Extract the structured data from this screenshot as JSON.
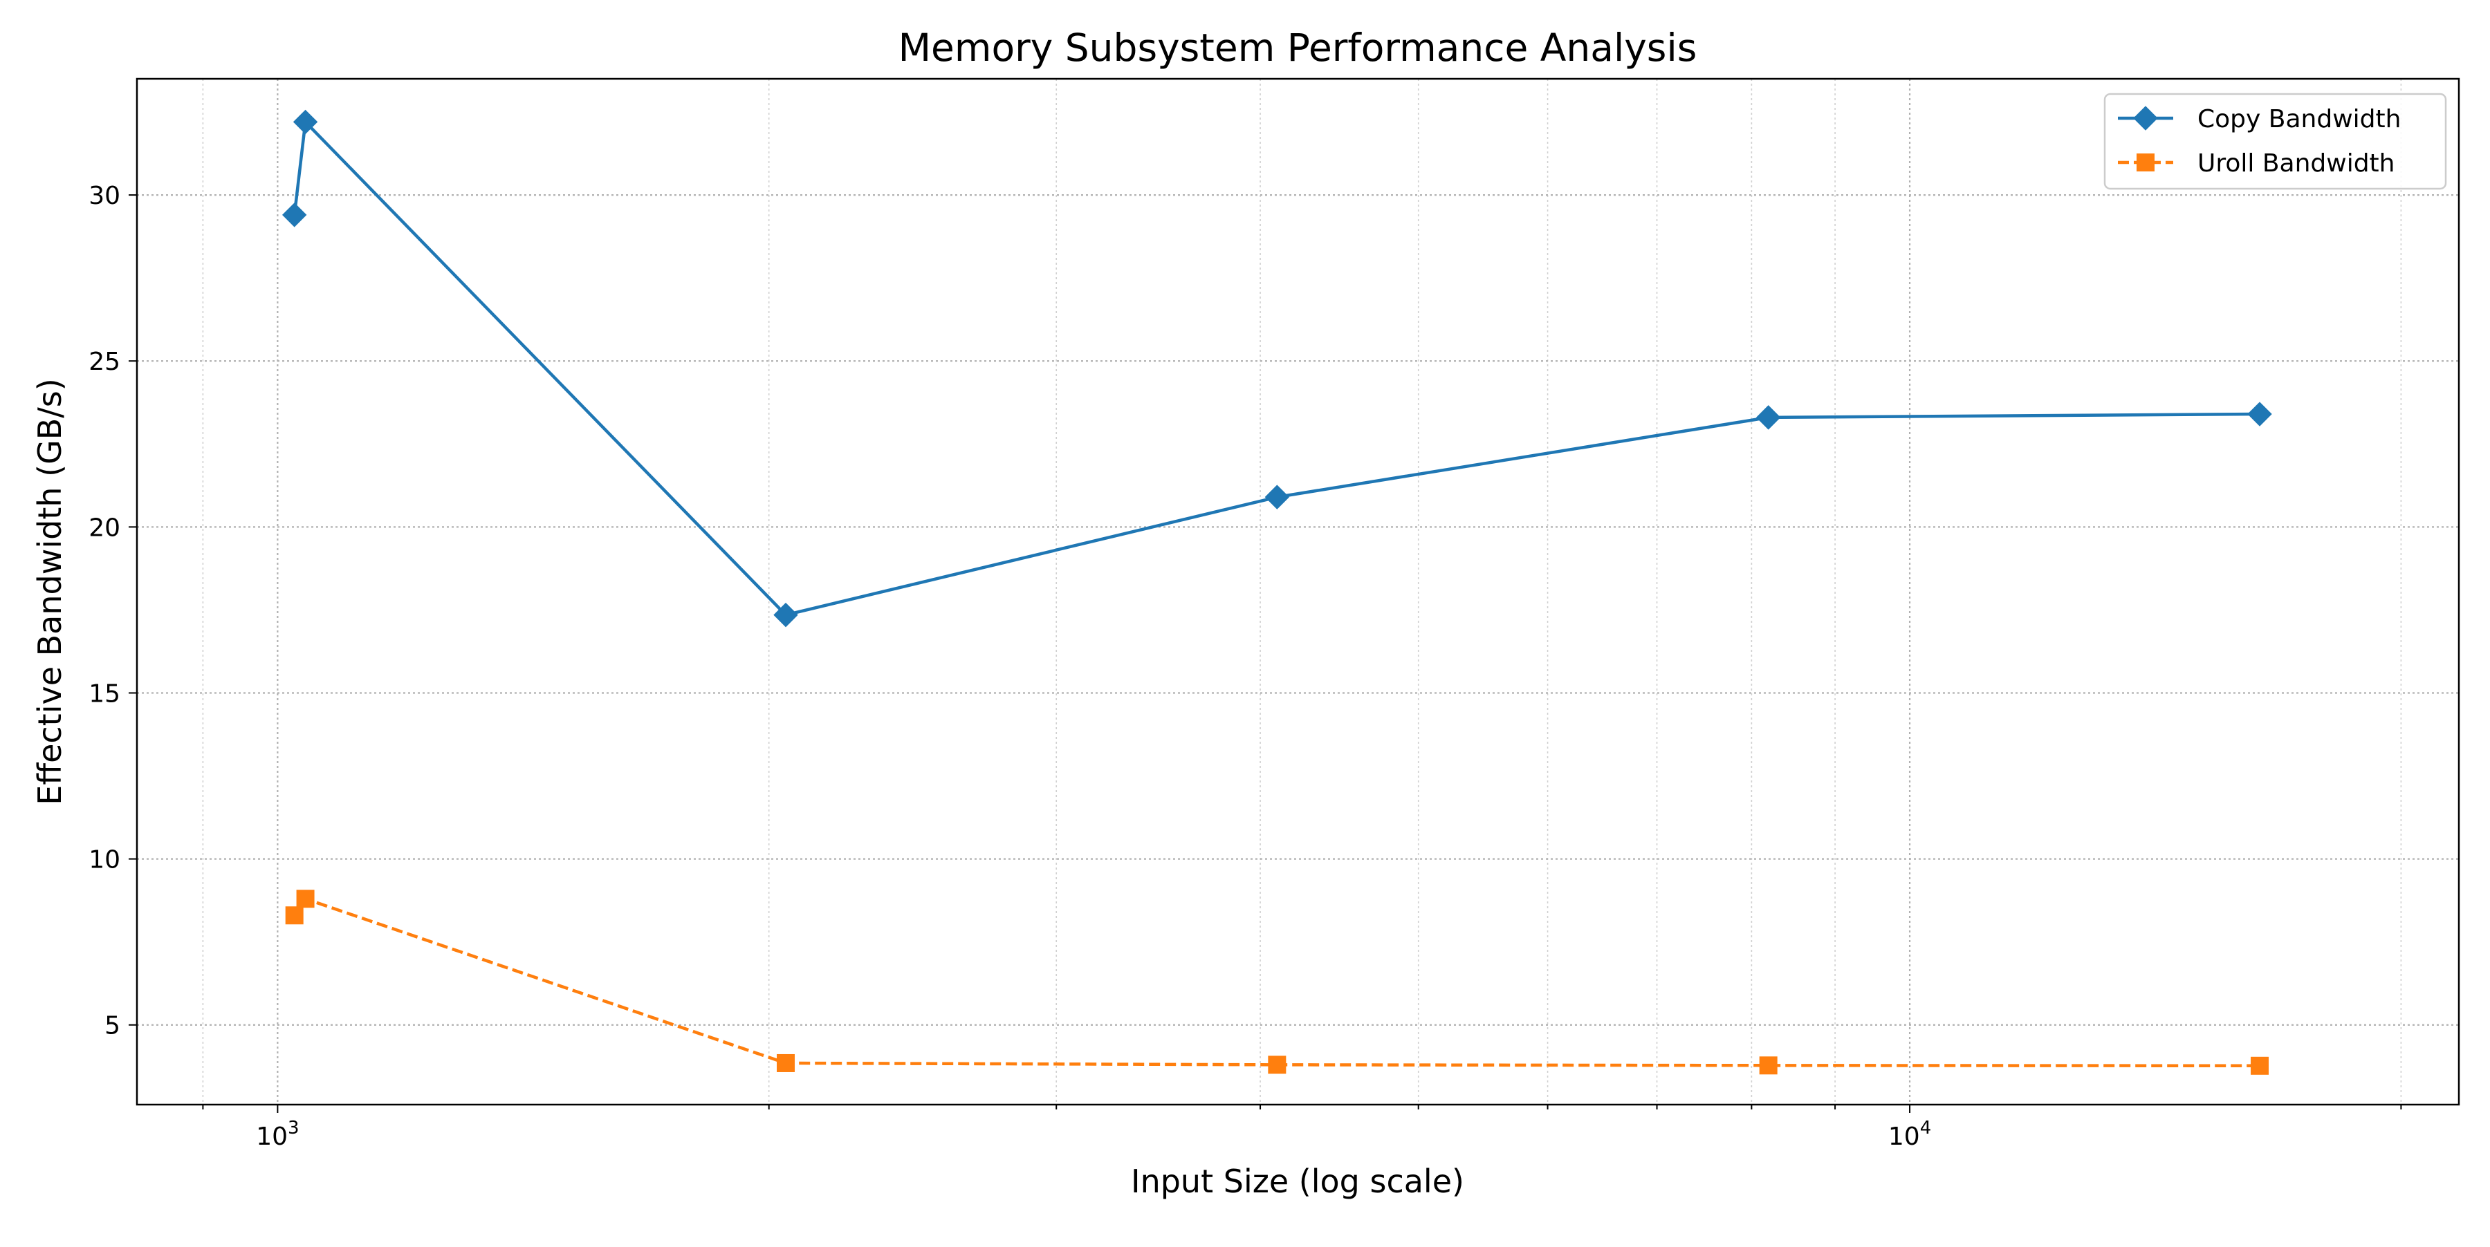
{
  "chart_data": {
    "type": "line",
    "title": "Memory Subsystem Performance Analysis",
    "xlabel": "Input Size (log scale)",
    "ylabel": "Effective Bandwidth (GB/s)",
    "x_scale": "log",
    "xlim": [
      820,
      21700
    ],
    "ylim": [
      2.6,
      33.5
    ],
    "x_ticks": [
      {
        "value": 1000,
        "base": "10",
        "exp": "3"
      },
      {
        "value": 10000,
        "base": "10",
        "exp": "4"
      }
    ],
    "y_ticks": [
      5,
      10,
      15,
      20,
      25,
      30
    ],
    "grid": true,
    "legend_position": "top-right",
    "series": [
      {
        "name": "Copy Bandwidth",
        "color": "#1f77b4",
        "line_style": "solid",
        "marker": "diamond",
        "x": [
          1024,
          1040,
          2048,
          4096,
          8192,
          16384
        ],
        "y": [
          29.4,
          32.2,
          17.35,
          20.9,
          23.3,
          23.4
        ]
      },
      {
        "name": "Uroll Bandwidth",
        "color": "#ff7f0e",
        "line_style": "dashed",
        "marker": "square",
        "x": [
          1024,
          1040,
          2048,
          4096,
          8192,
          16384
        ],
        "y": [
          8.3,
          8.8,
          3.85,
          3.8,
          3.78,
          3.77
        ]
      }
    ]
  }
}
